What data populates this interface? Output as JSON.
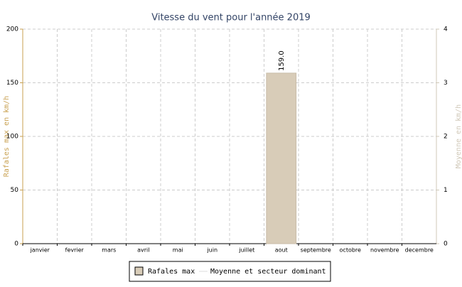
{
  "chart_data": {
    "type": "bar",
    "title": "Vitesse du vent pour l'année 2019",
    "y_label": "Rafales max en km/h",
    "y2_label": "Moyenne en km/h",
    "categories": [
      "janvier",
      "fevrier",
      "mars",
      "avril",
      "mai",
      "juin",
      "juillet",
      "aout",
      "septembre",
      "octobre",
      "novembre",
      "decembre"
    ],
    "series": [
      {
        "name": "Rafales max",
        "color": "#d8ccb8",
        "values": [
          null,
          null,
          null,
          null,
          null,
          null,
          null,
          159,
          null,
          null,
          null,
          null
        ],
        "value_labels": [
          null,
          null,
          null,
          null,
          null,
          null,
          null,
          "159.0",
          null,
          null,
          null,
          null
        ]
      },
      {
        "name": "Moyenne et secteur dominant",
        "color": "#dddddd",
        "axis": "y2",
        "values": [
          null,
          null,
          null,
          null,
          null,
          null,
          null,
          null,
          null,
          null,
          null,
          null
        ]
      }
    ],
    "ylim": [
      0,
      200
    ],
    "yticks": [
      0,
      50,
      100,
      150,
      200
    ],
    "y2lim": [
      0,
      4
    ],
    "y2ticks": [
      0,
      1,
      2,
      3,
      4
    ],
    "grid": true
  }
}
